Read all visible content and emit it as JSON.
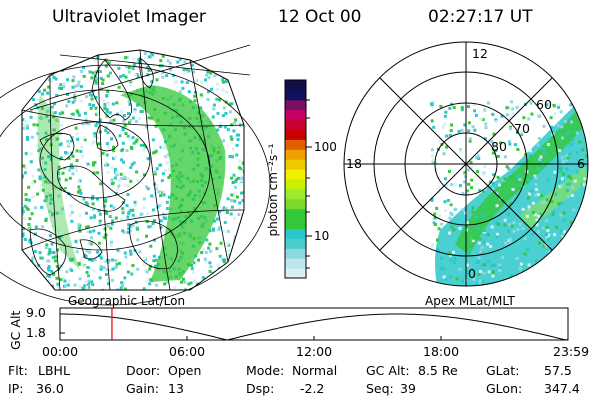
{
  "header": {
    "title": "Ultraviolet Imager",
    "date": "12 Oct 00",
    "time": "02:27:17 UT"
  },
  "colors": {
    "low": "#d8f0f4",
    "cyan": "#2ac8c8",
    "green": "#33c83a",
    "lime": "#9ee830",
    "yellow": "#f0f000",
    "orange": "#f0a000",
    "red": "#c80000",
    "magenta": "#c80064",
    "navy": "#101060",
    "time_marker": "#e00000"
  },
  "geo_panel": {
    "label": "Geographic Lat/Lon"
  },
  "polar_panel": {
    "label": "Apex MLat/MLT",
    "mlt_labels": [
      "12",
      "18",
      "6",
      "0"
    ],
    "mlat_labels": [
      "60",
      "70",
      "80"
    ]
  },
  "colorbar": {
    "unit_label": "photon cm⁻²s⁻¹",
    "tick_labels": [
      "100",
      "10"
    ],
    "colors": [
      "#d8f0f4",
      "#bce6ee",
      "#8ad8e0",
      "#4ccccc",
      "#2ac8c8",
      "#33c83a",
      "#33c83a",
      "#7ada2c",
      "#9ee830",
      "#c8f000",
      "#f0f000",
      "#f0c800",
      "#f0a000",
      "#e06000",
      "#c80000",
      "#c80032",
      "#c80064",
      "#7a1060",
      "#101060",
      "#101048"
    ]
  },
  "altitude_plot": {
    "y_axis_label": "GC Alt",
    "y_ticks": [
      "9.0",
      "1.8"
    ],
    "x_ticks": [
      "00:00",
      "06:00",
      "12:00",
      "18:00",
      "23:59"
    ],
    "marker_time": "02:27:17",
    "orbit": {
      "apogee_time_hours": [
        0.0,
        15.9
      ],
      "perigee_time_hours": [
        7.9,
        23.9
      ],
      "alt_max_re": 9.0,
      "alt_min_re": 1.8
    }
  },
  "status": {
    "row1": [
      {
        "label": "Flt:",
        "value": "LBHL"
      },
      {
        "label": "Door:",
        "value": "Open"
      },
      {
        "label": "Mode:",
        "value": "Normal"
      },
      {
        "label": "GC Alt:",
        "value": "8.5 Re"
      },
      {
        "label": "GLat:",
        "value": "57.5"
      }
    ],
    "row2": [
      {
        "label": "IP:",
        "value": "36.0"
      },
      {
        "label": "Gain:",
        "value": "13"
      },
      {
        "label": "Dsp:",
        "value": "-2.2"
      },
      {
        "label": "Seq:",
        "value": "39"
      },
      {
        "label": "GLon:",
        "value": "347.4"
      }
    ]
  }
}
